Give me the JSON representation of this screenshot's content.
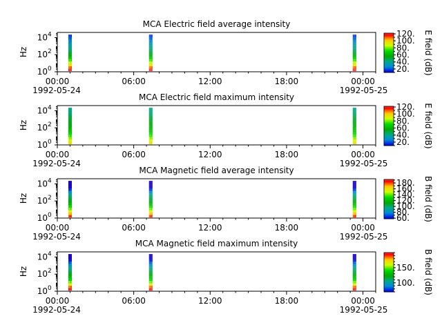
{
  "chart_data": [
    {
      "type": "heatmap",
      "title": "MCA  Electric field average intensity",
      "ylabel": "Hz",
      "y_scale": "log",
      "y_ticks": [
        {
          "base": "10",
          "exp": "0"
        },
        {
          "base": "10",
          "exp": "2"
        },
        {
          "base": "10",
          "exp": "4"
        }
      ],
      "x_ticks": [
        "00:00",
        "06:00",
        "12:00",
        "18:00",
        "00:00"
      ],
      "x_dates": [
        "1992-05-24",
        "1992-05-25"
      ],
      "colorbar_label": "E field (dB)",
      "colorbar_ticks": [
        "20.",
        "40.",
        "60.",
        "80.",
        "100.",
        "120."
      ],
      "colorbar_range": [
        10,
        122
      ],
      "data_bursts_utc": [
        "01:00",
        "07:20",
        "23:20"
      ],
      "intensity_profile_low_to_high_freq": [
        115,
        105,
        95,
        88,
        80,
        72,
        68,
        62,
        58,
        54,
        52,
        48,
        44,
        40,
        38
      ]
    },
    {
      "type": "heatmap",
      "title": "MCA  Electric field maximum intensity",
      "ylabel": "Hz",
      "y_scale": "log",
      "y_ticks": [
        {
          "base": "10",
          "exp": "0"
        },
        {
          "base": "10",
          "exp": "2"
        },
        {
          "base": "10",
          "exp": "4"
        }
      ],
      "x_ticks": [
        "00:00",
        "06:00",
        "12:00",
        "18:00",
        "00:00"
      ],
      "x_dates": [
        "1992-05-24",
        "1992-05-25"
      ],
      "colorbar_label": "E field (dB)",
      "colorbar_ticks": [
        "20.",
        "40.",
        "60.",
        "80.",
        "100.",
        "120."
      ],
      "colorbar_range": [
        10,
        122
      ],
      "data_bursts_utc": [
        "01:00",
        "07:20",
        "23:20"
      ],
      "intensity_profile_low_to_high_freq": [
        95,
        90,
        85,
        80,
        76,
        72,
        70,
        68,
        66,
        64,
        62,
        60,
        58,
        56,
        55
      ]
    },
    {
      "type": "heatmap",
      "title": "MCA  Magnetic field average intensity",
      "ylabel": "Hz",
      "y_scale": "log",
      "y_ticks": [
        {
          "base": "10",
          "exp": "0"
        },
        {
          "base": "10",
          "exp": "2"
        },
        {
          "base": "10",
          "exp": "4"
        }
      ],
      "x_ticks": [
        "00:00",
        "06:00",
        "12:00",
        "18:00",
        "00:00"
      ],
      "x_dates": [
        "1992-05-24",
        "1992-05-25"
      ],
      "colorbar_label": "B field (dB)",
      "colorbar_ticks": [
        "60.",
        "80.",
        "100.",
        "120.",
        "140.",
        "160.",
        "180."
      ],
      "colorbar_range": [
        58,
        192
      ],
      "data_bursts_utc": [
        "01:00",
        "07:20",
        "23:20"
      ],
      "intensity_profile_low_to_high_freq": [
        175,
        165,
        155,
        145,
        138,
        130,
        125,
        120,
        115,
        110,
        100,
        90,
        82,
        75,
        70
      ]
    },
    {
      "type": "heatmap",
      "title": "MCA  Magnetic field maximum intensity",
      "ylabel": "Hz",
      "y_scale": "log",
      "y_ticks": [
        {
          "base": "10",
          "exp": "0"
        },
        {
          "base": "10",
          "exp": "2"
        },
        {
          "base": "10",
          "exp": "4"
        }
      ],
      "x_ticks": [
        "00:00",
        "06:00",
        "12:00",
        "18:00",
        "00:00"
      ],
      "x_dates": [
        "1992-05-24",
        "1992-05-25"
      ],
      "colorbar_label": "B field (dB)",
      "colorbar_ticks": [
        "100.",
        "150."
      ],
      "colorbar_range": [
        70,
        200
      ],
      "data_bursts_utc": [
        "01:00",
        "07:20",
        "23:20"
      ],
      "intensity_profile_low_to_high_freq": [
        190,
        180,
        165,
        155,
        145,
        140,
        135,
        130,
        125,
        120,
        112,
        105,
        98,
        92,
        88
      ]
    }
  ]
}
